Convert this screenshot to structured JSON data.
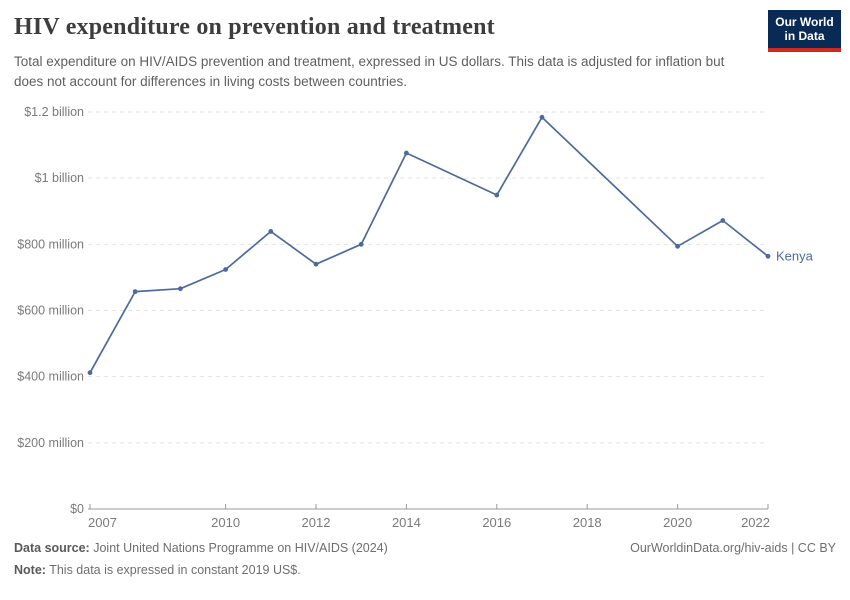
{
  "header": {
    "title": "HIV expenditure on prevention and treatment",
    "subtitle": "Total expenditure on HIV/AIDS prevention and treatment, expressed in US dollars. This data is adjusted for inflation but does not account for differences in living costs between countries.",
    "logo": {
      "line1": "Our World",
      "line2": "in Data",
      "bg_color": "#0a2a56",
      "accent_color": "#cc2a20"
    }
  },
  "chart_data": {
    "type": "line",
    "title": "HIV expenditure on prevention and treatment",
    "xlabel": "",
    "ylabel": "US dollars",
    "x": [
      2007,
      2008,
      2009,
      2010,
      2011,
      2012,
      2013,
      2014,
      2016,
      2017,
      2020,
      2021,
      2022
    ],
    "series": [
      {
        "name": "Kenya",
        "color": "#4C6A9C",
        "values_million_usd": [
          412,
          657,
          666,
          724,
          839,
          740,
          800,
          1076,
          949,
          1184,
          794,
          872,
          764
        ]
      }
    ],
    "xlim": [
      2007,
      2022
    ],
    "ylim": [
      0,
      1200000000
    ],
    "ylim_million": [
      0,
      1200
    ],
    "x_ticks": [
      2007,
      2010,
      2012,
      2014,
      2016,
      2018,
      2020,
      2022
    ],
    "y_ticks": [
      {
        "value_million": 0,
        "label": "$0"
      },
      {
        "value_million": 200,
        "label": "$200 million"
      },
      {
        "value_million": 400,
        "label": "$400 million"
      },
      {
        "value_million": 600,
        "label": "$600 million"
      },
      {
        "value_million": 800,
        "label": "$800 million"
      },
      {
        "value_million": 1000,
        "label": "$1 billion"
      },
      {
        "value_million": 1200,
        "label": "$1.2 billion"
      }
    ],
    "grid": "horizontal-dashed",
    "legend_position": "end-of-line-label",
    "end_label": "Kenya",
    "colors": {
      "gridline": "#e2e2e2",
      "axis": "#9a9a9a",
      "tick_label": "#7a7a7a",
      "line": "#4C6A9C"
    }
  },
  "footer": {
    "datasource_label": "Data source:",
    "datasource_text": "Joint United Nations Programme on HIV/AIDS (2024)",
    "note_label": "Note:",
    "note_text": "This data is expressed in constant 2019 US$.",
    "link": "OurWorldinData.org/hiv-aids | CC BY"
  }
}
